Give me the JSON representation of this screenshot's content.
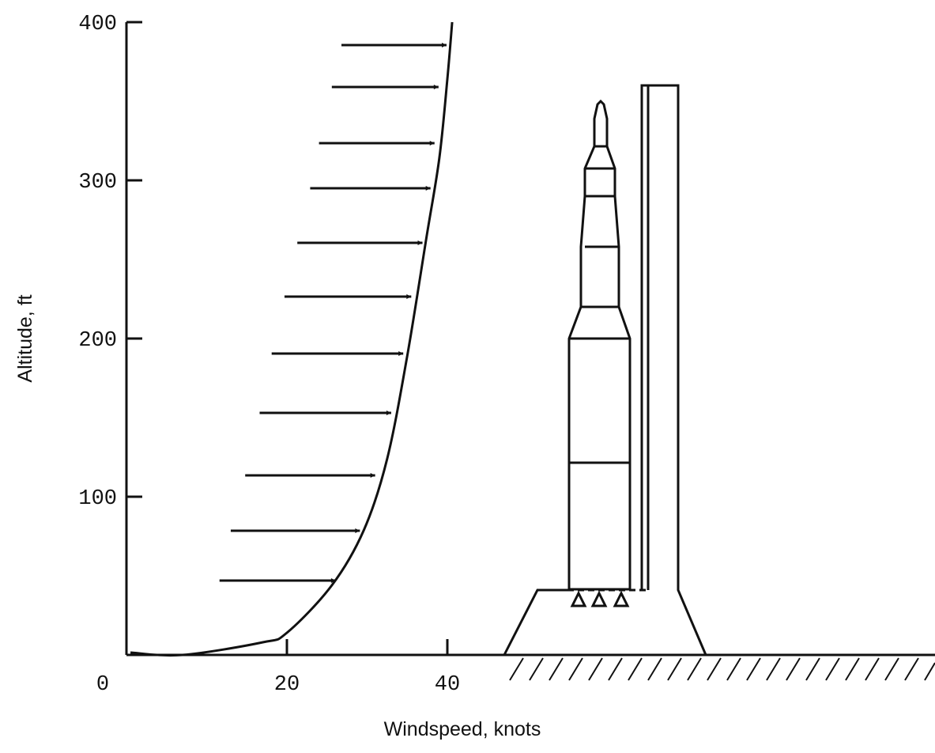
{
  "chart_data": {
    "type": "line",
    "x_label": "Windspeed, knots",
    "y_label": "Altitude, ft",
    "x": [
      0.5,
      7,
      17,
      20,
      25.6,
      29.6,
      32.5,
      35,
      37.4,
      39,
      40,
      40.6
    ],
    "values": [
      1.5,
      0,
      8,
      14,
      44,
      79,
      124,
      189,
      264,
      314,
      364,
      400
    ],
    "color": "#111111",
    "arrows": [
      {
        "altitude": 385.5,
        "from": 26.8,
        "to": 39.9
      },
      {
        "altitude": 359,
        "from": 25.6,
        "to": 38.9
      },
      {
        "altitude": 323.5,
        "from": 24.0,
        "to": 38.4
      },
      {
        "altitude": 295,
        "from": 22.9,
        "to": 37.9
      },
      {
        "altitude": 260.5,
        "from": 21.3,
        "to": 36.9
      },
      {
        "altitude": 226.5,
        "from": 19.7,
        "to": 35.5
      },
      {
        "altitude": 190.5,
        "from": 18.1,
        "to": 34.5
      },
      {
        "altitude": 153,
        "from": 16.6,
        "to": 33.0
      },
      {
        "altitude": 113.5,
        "from": 14.8,
        "to": 31.0
      },
      {
        "altitude": 78.5,
        "from": 13.0,
        "to": 29.1
      },
      {
        "altitude": 47,
        "from": 11.6,
        "to": 26.1
      }
    ],
    "xlim": [
      0,
      100
    ],
    "ylim": [
      0,
      400
    ],
    "xticks": [
      0,
      20,
      40
    ],
    "yticks": [
      100,
      200,
      300,
      400
    ]
  }
}
